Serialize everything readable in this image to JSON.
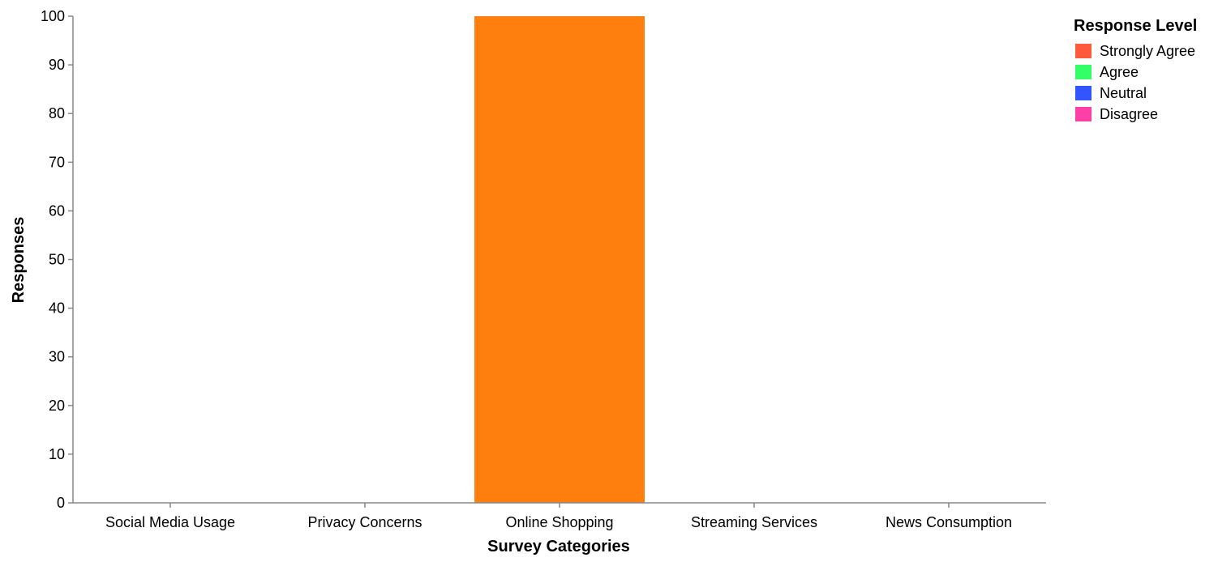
{
  "chart_data": {
    "type": "bar",
    "stacked": true,
    "title": "",
    "xlabel": "Survey Categories",
    "ylabel": "Responses",
    "ylim": [
      0,
      100
    ],
    "yticks": [
      0,
      10,
      20,
      30,
      40,
      50,
      60,
      70,
      80,
      90,
      100
    ],
    "grid": false,
    "legend_position": "top-right",
    "legend_title": "Response Level",
    "categories": [
      "Social Media Usage",
      "Privacy Concerns",
      "Online Shopping",
      "Streaming Services",
      "News Consumption"
    ],
    "legend": [
      {
        "name": "Strongly Agree",
        "color": "#ff5a3c"
      },
      {
        "name": "Agree",
        "color": "#33ff66"
      },
      {
        "name": "Neutral",
        "color": "#3355ff"
      },
      {
        "name": "Disagree",
        "color": "#ff3fa8"
      }
    ],
    "bars": [
      {
        "category": "Online Shopping",
        "value": 100,
        "color": "#ff7f0e"
      }
    ]
  }
}
